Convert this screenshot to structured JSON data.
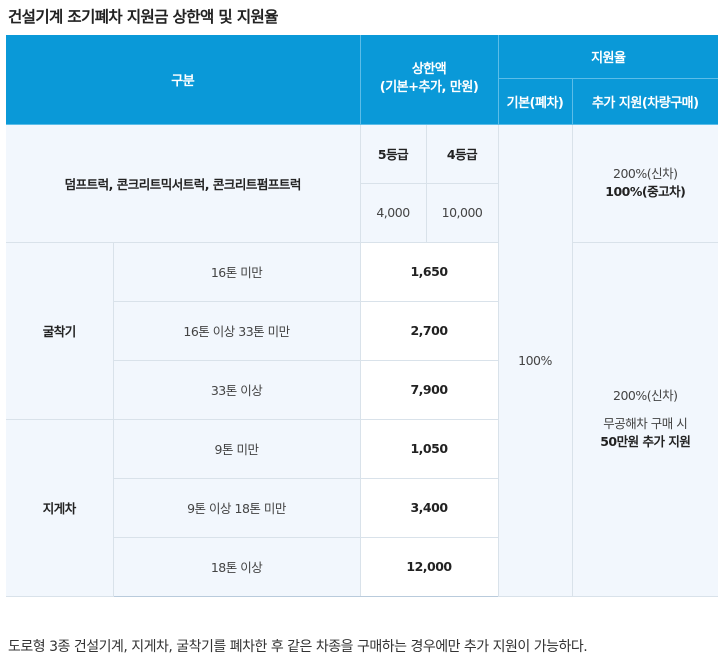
{
  "title": "건설기계 조기폐차 지원금 상한액 및 지원율",
  "header": {
    "category": "구분",
    "limit_line1": "상한액",
    "limit_line2": "(기본+추가, 만원)",
    "rate": "지원율",
    "rate_basic": "기본(폐차)",
    "rate_extra": "추가 지원(차량구매)"
  },
  "dump": {
    "label": "덤프트럭, 콘크리트믹서트럭, 콘크리트펌프트럭",
    "grade5_label": "5등급",
    "grade4_label": "4등급",
    "grade5_value": "4,000",
    "grade4_value": "10,000",
    "extra_line1": "200%(신차)",
    "extra_line2": "100%(중고차)"
  },
  "excavator": {
    "label": "굴착기",
    "rows": [
      {
        "range": "16톤 미만",
        "value": "1,650"
      },
      {
        "range": "16톤 이상 33톤 미만",
        "value": "2,700"
      },
      {
        "range": "33톤 이상",
        "value": "7,900"
      }
    ]
  },
  "forklift": {
    "label": "지게차",
    "rows": [
      {
        "range": "9톤 미만",
        "value": "1,050"
      },
      {
        "range": "9톤 이상 18톤 미만",
        "value": "3,400"
      },
      {
        "range": "18톤 이상",
        "value": "12,000"
      }
    ]
  },
  "basic_rate": "100%",
  "extra_other": {
    "line1": "200%(신차)",
    "line2": "무공해차 구매 시",
    "line3": "50만원 추가 지원"
  },
  "footnote": "도로형 3종 건설기계, 지게차, 굴착기를 폐차한 후 같은 차종을 구매하는 경우에만 추가 지원이 가능하다.",
  "colors": {
    "header_bg": "#0a99d8",
    "body_bg_alt": "#f2f7fd"
  }
}
